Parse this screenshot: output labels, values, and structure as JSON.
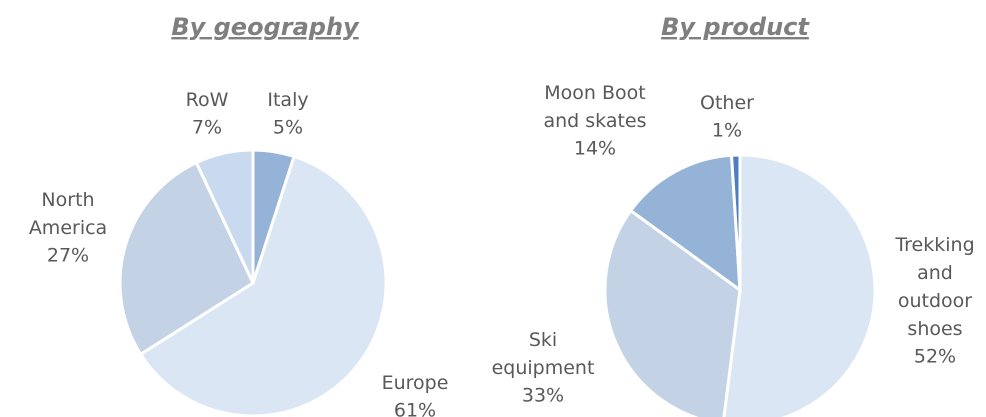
{
  "chart_data": [
    {
      "type": "pie",
      "title": "By geography",
      "categories": [
        "Italy",
        "Europe",
        "North America",
        "RoW"
      ],
      "values": [
        5,
        61,
        27,
        7
      ],
      "value_labels": [
        "5%",
        "61%",
        "27%",
        "7%"
      ],
      "colors": [
        "#95b3d7",
        "#dae6f4",
        "#c3d3e5",
        "#c9daf0"
      ]
    },
    {
      "type": "pie",
      "title": "By product",
      "categories": [
        "Trekking and outdoor shoes",
        "Ski equipment",
        "Moon Boot and skates",
        "Other"
      ],
      "values": [
        52,
        33,
        14,
        1
      ],
      "value_labels": [
        "52%",
        "33%",
        "14%",
        "1%"
      ],
      "colors": [
        "#dae6f4",
        "#c3d3e5",
        "#95b3d7",
        "#4f7fc0"
      ]
    }
  ]
}
